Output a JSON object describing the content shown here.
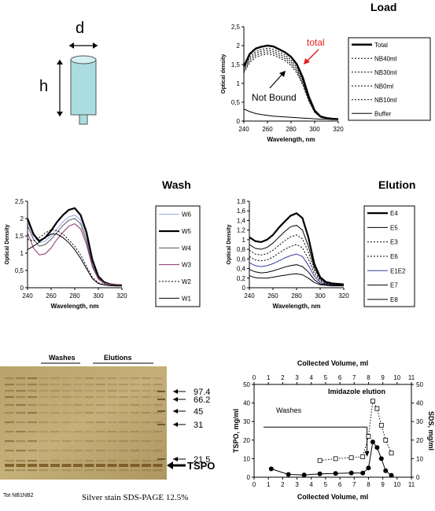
{
  "column_diagram": {
    "d_label": "d",
    "h_label": "h"
  },
  "gel": {
    "washes_label": "Washes",
    "elutions_label": "Elutions",
    "markers": [
      "97.4",
      "66.2",
      "45",
      "31",
      "21.5"
    ],
    "tspo_label": "TSPO",
    "lanes_label": "Tot NB1NB2",
    "caption": "Silver stain SDS-PAGE 12.5%"
  },
  "chart_data": [
    {
      "type": "line",
      "title": "Load",
      "xlabel": "Wavelength, nm",
      "ylabel": "Optical density",
      "xlim": [
        240,
        320
      ],
      "ylim": [
        0,
        2.5
      ],
      "x_ticks": [
        "240",
        "260",
        "280",
        "300",
        "320"
      ],
      "y_ticks": [
        "0",
        "0,5",
        "1",
        "1,5",
        "2",
        "2,5"
      ],
      "legend": "right",
      "annotations": [
        "total",
        "Not Bound"
      ],
      "x": [
        240,
        245,
        250,
        255,
        260,
        265,
        270,
        275,
        280,
        285,
        290,
        295,
        300,
        305,
        310,
        315,
        320
      ],
      "series": [
        {
          "name": "Total",
          "values": [
            1.45,
            1.78,
            1.92,
            1.97,
            2.0,
            1.98,
            1.9,
            1.82,
            1.7,
            1.5,
            1.15,
            0.65,
            0.28,
            0.12,
            0.08,
            0.06,
            0.05
          ]
        },
        {
          "name": "NB40ml",
          "values": [
            1.4,
            1.7,
            1.84,
            1.9,
            1.93,
            1.9,
            1.83,
            1.75,
            1.62,
            1.42,
            1.07,
            0.6,
            0.26,
            0.11,
            0.08,
            0.06,
            0.05
          ]
        },
        {
          "name": "NB30ml",
          "values": [
            1.36,
            1.65,
            1.79,
            1.85,
            1.88,
            1.85,
            1.78,
            1.7,
            1.57,
            1.37,
            1.03,
            0.58,
            0.25,
            0.11,
            0.07,
            0.06,
            0.05
          ]
        },
        {
          "name": "NB0ml",
          "values": [
            1.32,
            1.6,
            1.74,
            1.8,
            1.83,
            1.8,
            1.73,
            1.65,
            1.52,
            1.32,
            0.99,
            0.56,
            0.24,
            0.1,
            0.07,
            0.06,
            0.05
          ]
        },
        {
          "name": "NB10ml",
          "values": [
            1.28,
            1.55,
            1.69,
            1.75,
            1.78,
            1.75,
            1.68,
            1.6,
            1.47,
            1.27,
            0.95,
            0.53,
            0.23,
            0.1,
            0.07,
            0.05,
            0.05
          ]
        },
        {
          "name": "Buffer",
          "values": [
            0.32,
            0.25,
            0.2,
            0.17,
            0.15,
            0.13,
            0.12,
            0.11,
            0.1,
            0.09,
            0.08,
            0.07,
            0.06,
            0.05,
            0.05,
            0.04,
            0.04
          ]
        }
      ]
    },
    {
      "type": "line",
      "title": "Wash",
      "xlabel": "Wavelength, nm",
      "ylabel": "Optical Density",
      "xlim": [
        240,
        320
      ],
      "ylim": [
        0,
        2.5
      ],
      "x_ticks": [
        "240",
        "260",
        "280",
        "300",
        "320"
      ],
      "y_ticks": [
        "0",
        "0,5",
        "1",
        "1,5",
        "2",
        "2,5"
      ],
      "legend": "right",
      "x": [
        240,
        245,
        250,
        255,
        260,
        265,
        270,
        275,
        280,
        285,
        290,
        295,
        300,
        305,
        310,
        315,
        320
      ],
      "series": [
        {
          "name": "W6",
          "values": [
            1.9,
            1.5,
            1.3,
            1.35,
            1.5,
            1.7,
            1.9,
            2.05,
            2.1,
            1.95,
            1.45,
            0.7,
            0.3,
            0.15,
            0.1,
            0.08,
            0.07
          ]
        },
        {
          "name": "W5",
          "values": [
            2.0,
            1.55,
            1.35,
            1.45,
            1.65,
            1.9,
            2.1,
            2.25,
            2.3,
            2.1,
            1.6,
            0.8,
            0.33,
            0.16,
            0.1,
            0.08,
            0.07
          ]
        },
        {
          "name": "W4",
          "values": [
            1.8,
            1.4,
            1.2,
            1.25,
            1.4,
            1.6,
            1.8,
            1.95,
            2.0,
            1.85,
            1.35,
            0.65,
            0.28,
            0.14,
            0.1,
            0.08,
            0.07
          ]
        },
        {
          "name": "W3",
          "values": [
            1.6,
            1.15,
            0.95,
            0.98,
            1.15,
            1.4,
            1.6,
            1.78,
            1.85,
            1.7,
            1.25,
            0.6,
            0.25,
            0.12,
            0.09,
            0.07,
            0.06
          ]
        },
        {
          "name": "W2",
          "values": [
            1.4,
            1.35,
            1.45,
            1.58,
            1.68,
            1.65,
            1.55,
            1.38,
            1.2,
            0.95,
            0.62,
            0.3,
            0.14,
            0.09,
            0.07,
            0.06,
            0.06
          ]
        },
        {
          "name": "W1",
          "values": [
            1.1,
            1.2,
            1.32,
            1.45,
            1.55,
            1.55,
            1.45,
            1.3,
            1.1,
            0.85,
            0.55,
            0.26,
            0.12,
            0.08,
            0.06,
            0.05,
            0.05
          ]
        }
      ]
    },
    {
      "type": "line",
      "title": "Elution",
      "xlabel": "Wavelength, nm",
      "ylabel": "Optical Density",
      "xlim": [
        240,
        320
      ],
      "ylim": [
        0,
        1.8
      ],
      "x_ticks": [
        "240",
        "260",
        "280",
        "300",
        "320"
      ],
      "y_ticks": [
        "0",
        "0,2",
        "0,4",
        "0,6",
        "0,8",
        "1",
        "1,2",
        "1,4",
        "1,6",
        "1,8"
      ],
      "legend": "right",
      "x": [
        240,
        245,
        250,
        255,
        260,
        265,
        270,
        275,
        280,
        285,
        290,
        295,
        300,
        305,
        310,
        315,
        320
      ],
      "series": [
        {
          "name": "E4",
          "values": [
            1.05,
            0.97,
            0.95,
            1.0,
            1.1,
            1.25,
            1.38,
            1.5,
            1.55,
            1.45,
            1.05,
            0.5,
            0.22,
            0.12,
            0.09,
            0.08,
            0.07
          ]
        },
        {
          "name": "E5",
          "values": [
            0.9,
            0.82,
            0.8,
            0.84,
            0.93,
            1.05,
            1.17,
            1.27,
            1.3,
            1.2,
            0.87,
            0.42,
            0.19,
            0.1,
            0.08,
            0.07,
            0.06
          ]
        },
        {
          "name": "E3",
          "values": [
            0.78,
            0.7,
            0.68,
            0.71,
            0.78,
            0.88,
            0.98,
            1.06,
            1.1,
            1.02,
            0.74,
            0.36,
            0.16,
            0.09,
            0.07,
            0.06,
            0.06
          ]
        },
        {
          "name": "E6",
          "values": [
            0.65,
            0.58,
            0.56,
            0.58,
            0.64,
            0.72,
            0.8,
            0.86,
            0.9,
            0.83,
            0.6,
            0.3,
            0.14,
            0.08,
            0.06,
            0.06,
            0.05
          ]
        },
        {
          "name": "E1E2",
          "values": [
            0.52,
            0.46,
            0.44,
            0.46,
            0.5,
            0.56,
            0.62,
            0.67,
            0.7,
            0.65,
            0.47,
            0.24,
            0.11,
            0.07,
            0.06,
            0.05,
            0.05
          ]
        },
        {
          "name": "E7",
          "values": [
            0.38,
            0.33,
            0.31,
            0.32,
            0.35,
            0.39,
            0.43,
            0.46,
            0.48,
            0.44,
            0.33,
            0.17,
            0.08,
            0.06,
            0.05,
            0.05,
            0.04
          ]
        },
        {
          "name": "E8",
          "values": [
            0.25,
            0.21,
            0.2,
            0.2,
            0.22,
            0.24,
            0.26,
            0.28,
            0.29,
            0.27,
            0.2,
            0.11,
            0.06,
            0.05,
            0.04,
            0.04,
            0.04
          ]
        }
      ]
    },
    {
      "type": "scatter",
      "xlabel": "Collected Volume, ml",
      "x2label": "Collected Volume, ml",
      "ylabel": "TSPO, mg/ml",
      "y2label": "SDS, mg/ml",
      "xlim": [
        0,
        11
      ],
      "ylim": [
        0,
        50
      ],
      "y2lim": [
        0,
        50
      ],
      "x_ticks": [
        "0",
        "1",
        "2",
        "3",
        "4",
        "5",
        "6",
        "7",
        "8",
        "9",
        "10",
        "11"
      ],
      "y_ticks": [
        "0",
        "10",
        "20",
        "30",
        "40",
        "50"
      ],
      "annotations": [
        "Imidazole elution",
        "Washes"
      ],
      "series": [
        {
          "axis": "left",
          "marker": "filled-circle",
          "x": [
            1.2,
            2.4,
            3.5,
            4.6,
            5.7,
            6.8,
            7.6,
            8.0,
            8.3,
            8.6,
            8.9,
            9.2,
            9.6
          ],
          "values": [
            4.5,
            1.5,
            1.2,
            1.8,
            2.0,
            2.3,
            2.2,
            5.0,
            19.0,
            16.0,
            10.0,
            3.5,
            1.0
          ]
        },
        {
          "axis": "right",
          "marker": "open-square",
          "line": "dotted",
          "x": [
            4.6,
            5.7,
            6.8,
            7.6,
            8.0,
            8.3,
            8.6,
            8.9,
            9.2,
            9.6
          ],
          "values": [
            9.0,
            10.0,
            10.5,
            11.0,
            22.0,
            41.0,
            37.0,
            28.0,
            20.0,
            13.0
          ]
        }
      ]
    }
  ]
}
